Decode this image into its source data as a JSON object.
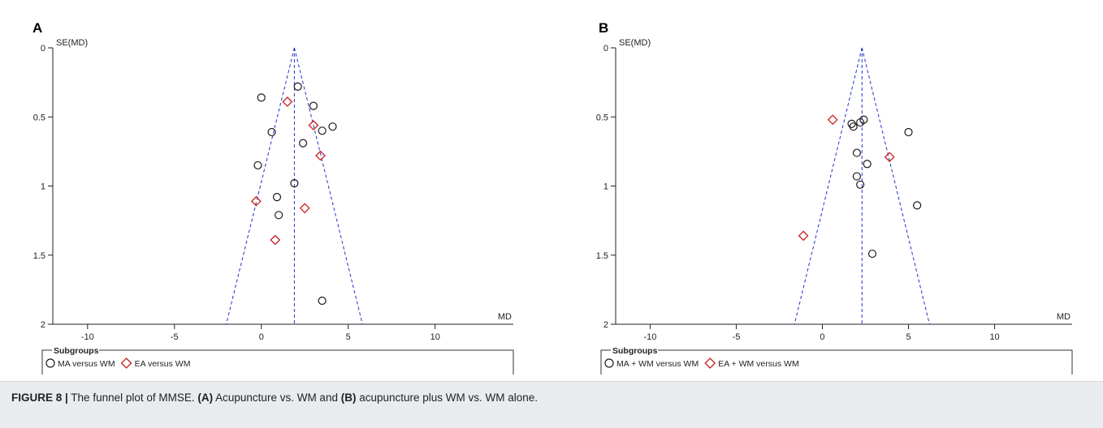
{
  "chart_data": [
    {
      "type": "scatter",
      "panel_label": "A",
      "ylabel": "SE(MD)",
      "xlabel": "MD",
      "xlim": [
        -12,
        14.5
      ],
      "ylim": [
        0,
        2
      ],
      "y_reversed": true,
      "xticks": [
        "-10",
        "-5",
        "0",
        "5",
        "10"
      ],
      "yticks": [
        "0",
        "0.5",
        "1",
        "1.5",
        "2"
      ],
      "pooled_md": 1.9,
      "funnel": {
        "apex": [
          1.9,
          0
        ],
        "base": [
          [
            -2.02,
            2
          ],
          [
            5.82,
            2
          ]
        ]
      },
      "legend": {
        "title": "Subgroups",
        "items": [
          "MA versus WM",
          "EA versus WM"
        ]
      },
      "series": [
        {
          "name": "MA versus WM",
          "marker": "circle",
          "color": "#1a1a1a",
          "points": [
            [
              2.1,
              0.28
            ],
            [
              0.0,
              0.36
            ],
            [
              3.0,
              0.42
            ],
            [
              4.1,
              0.57
            ],
            [
              3.5,
              0.6
            ],
            [
              0.6,
              0.61
            ],
            [
              2.4,
              0.69
            ],
            [
              -0.2,
              0.85
            ],
            [
              1.9,
              0.98
            ],
            [
              0.9,
              1.08
            ],
            [
              1.0,
              1.21
            ],
            [
              3.5,
              1.83
            ]
          ]
        },
        {
          "name": "EA versus WM",
          "marker": "diamond",
          "color": "#cc1f1f",
          "points": [
            [
              1.5,
              0.39
            ],
            [
              3.0,
              0.56
            ],
            [
              3.4,
              0.78
            ],
            [
              -0.3,
              1.11
            ],
            [
              2.5,
              1.16
            ],
            [
              0.8,
              1.39
            ]
          ]
        }
      ]
    },
    {
      "type": "scatter",
      "panel_label": "B",
      "ylabel": "SE(MD)",
      "xlabel": "MD",
      "xlim": [
        -12,
        14.5
      ],
      "ylim": [
        0,
        2
      ],
      "y_reversed": true,
      "xticks": [
        "-10",
        "-5",
        "0",
        "5",
        "10"
      ],
      "yticks": [
        "0",
        "0.5",
        "1",
        "1.5",
        "2"
      ],
      "pooled_md": 2.3,
      "funnel": {
        "apex": [
          2.3,
          0
        ],
        "base": [
          [
            -1.62,
            2
          ],
          [
            6.22,
            2
          ]
        ]
      },
      "legend": {
        "title": "Subgroups",
        "items": [
          "MA + WM versus WM",
          "EA + WM versus WM"
        ]
      },
      "series": [
        {
          "name": "MA + WM versus WM",
          "marker": "circle",
          "color": "#1a1a1a",
          "points": [
            [
              2.4,
              0.52
            ],
            [
              2.2,
              0.54
            ],
            [
              1.7,
              0.55
            ],
            [
              1.8,
              0.57
            ],
            [
              5.0,
              0.61
            ],
            [
              2.0,
              0.76
            ],
            [
              2.6,
              0.84
            ],
            [
              2.0,
              0.93
            ],
            [
              2.2,
              0.99
            ],
            [
              5.5,
              1.14
            ],
            [
              2.9,
              1.49
            ]
          ]
        },
        {
          "name": "EA + WM versus WM",
          "marker": "diamond",
          "color": "#cc1f1f",
          "points": [
            [
              0.6,
              0.52
            ],
            [
              3.9,
              0.79
            ],
            [
              -1.1,
              1.36
            ]
          ]
        }
      ]
    }
  ],
  "caption": {
    "label": "FIGURE 8 |",
    "text1": " The funnel plot of MMSE. ",
    "ref_a": "(A)",
    "text2": " Acupuncture vs. WM and ",
    "ref_b": "(B)",
    "text3": " acupuncture plus WM vs. WM alone."
  }
}
